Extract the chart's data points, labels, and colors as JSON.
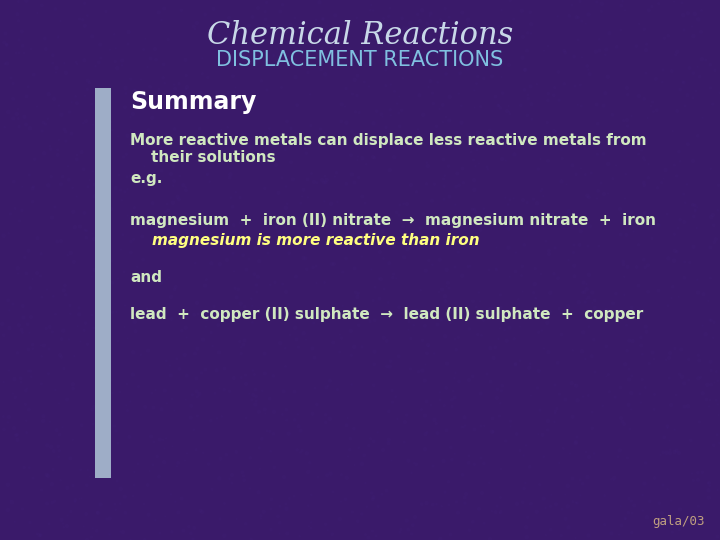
{
  "title_line1": "Chemical Reactions",
  "title_line2": "DISPLACEMENT REACTIONS",
  "title_line1_color": "#c8d8e8",
  "title_line2_color": "#80c0e0",
  "bg_color": "#3a1a6a",
  "sidebar_color": "#b0c8d8",
  "summary_text": "Summary",
  "summary_color": "#ffffff",
  "body_color": "#d0e8c0",
  "italic_color": "#ffff80",
  "footer_color": "#c0a080",
  "line1": "More reactive metals can displace less reactive metals from",
  "line2": "    their solutions",
  "line3": "e.g.",
  "line4": "magnesium  +  iron (II) nitrate  →  magnesium nitrate  +  iron",
  "line5": "magnesium is more reactive than iron",
  "line6": "and",
  "line7": "lead  +  copper (II) sulphate  →  lead (II) sulphate  +  copper",
  "footer": "gala/03"
}
